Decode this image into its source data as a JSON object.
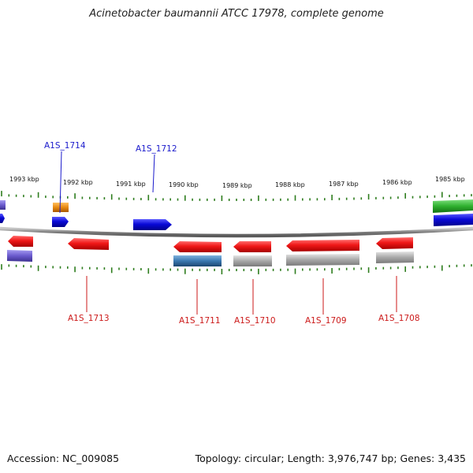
{
  "title": "Acinetobacter baumannii ATCC 17978, complete genome",
  "footer": {
    "accession": "Accession: NC_009085",
    "summary": "Topology: circular; Length: 3,976,747 bp; Genes: 3,435"
  },
  "ruler": {
    "kbp_labels": [
      "1993 kbp",
      "1992 kbp",
      "1991 kbp",
      "1990 kbp",
      "1989 kbp",
      "1988 kbp",
      "1987 kbp",
      "1986 kbp",
      "1985 kbp"
    ],
    "tick_color": "#2e7d1e"
  },
  "genes_above": [
    {
      "name": "A1S_1714",
      "color": "#1a1acc"
    },
    {
      "name": "A1S_1712",
      "color": "#1a1acc"
    }
  ],
  "genes_below": [
    {
      "name": "A1S_1713",
      "color": "#cc1a1a"
    },
    {
      "name": "A1S_1711",
      "color": "#cc1a1a"
    },
    {
      "name": "A1S_1710",
      "color": "#cc1a1a"
    },
    {
      "name": "A1S_1709",
      "color": "#cc1a1a"
    },
    {
      "name": "A1S_1708",
      "color": "#cc1a1a"
    }
  ],
  "colors": {
    "backbone": "#8c8c8c",
    "forward_gene": "#0a0ad8",
    "reverse_gene": "#e01010",
    "rna_orange": "#e88a10",
    "green_feature": "#2fb02f",
    "purple_feature": "#6a5acd",
    "steel_feature": "#3a78b0",
    "gray_feature": "#a8a8a8"
  }
}
